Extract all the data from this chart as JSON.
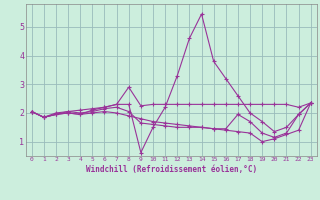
{
  "xlabel": "Windchill (Refroidissement éolien,°C)",
  "background_color": "#cceedd",
  "line_color": "#993399",
  "grid_color": "#99bbbb",
  "xlim": [
    -0.5,
    23.5
  ],
  "ylim": [
    0.5,
    5.8
  ],
  "xticks": [
    0,
    1,
    2,
    3,
    4,
    5,
    6,
    7,
    8,
    9,
    10,
    11,
    12,
    13,
    14,
    15,
    16,
    17,
    18,
    19,
    20,
    21,
    22,
    23
  ],
  "yticks": [
    1,
    2,
    3,
    4,
    5
  ],
  "lines": [
    [
      2.05,
      1.85,
      1.95,
      2.0,
      1.95,
      2.1,
      2.2,
      2.3,
      2.9,
      2.25,
      2.3,
      2.3,
      2.3,
      2.3,
      2.3,
      2.3,
      2.3,
      2.3,
      2.3,
      2.3,
      2.3,
      2.3,
      2.2,
      2.35
    ],
    [
      2.05,
      1.85,
      2.0,
      2.05,
      2.1,
      2.15,
      2.2,
      2.3,
      2.3,
      0.62,
      1.5,
      2.2,
      3.3,
      4.6,
      5.45,
      3.8,
      3.2,
      2.6,
      2.0,
      1.7,
      1.35,
      1.5,
      1.95,
      2.35
    ],
    [
      2.05,
      1.85,
      1.95,
      2.0,
      1.95,
      2.0,
      2.05,
      2.0,
      1.9,
      1.8,
      1.7,
      1.65,
      1.6,
      1.55,
      1.5,
      1.45,
      1.4,
      1.35,
      1.3,
      1.0,
      1.1,
      1.25,
      1.4,
      2.35
    ],
    [
      2.05,
      1.85,
      1.95,
      2.05,
      2.0,
      2.05,
      2.15,
      2.2,
      2.05,
      1.65,
      1.6,
      1.55,
      1.5,
      1.5,
      1.5,
      1.45,
      1.45,
      1.95,
      1.7,
      1.3,
      1.15,
      1.3,
      1.95,
      2.35
    ]
  ],
  "figsize": [
    3.2,
    2.0
  ],
  "dpi": 100
}
